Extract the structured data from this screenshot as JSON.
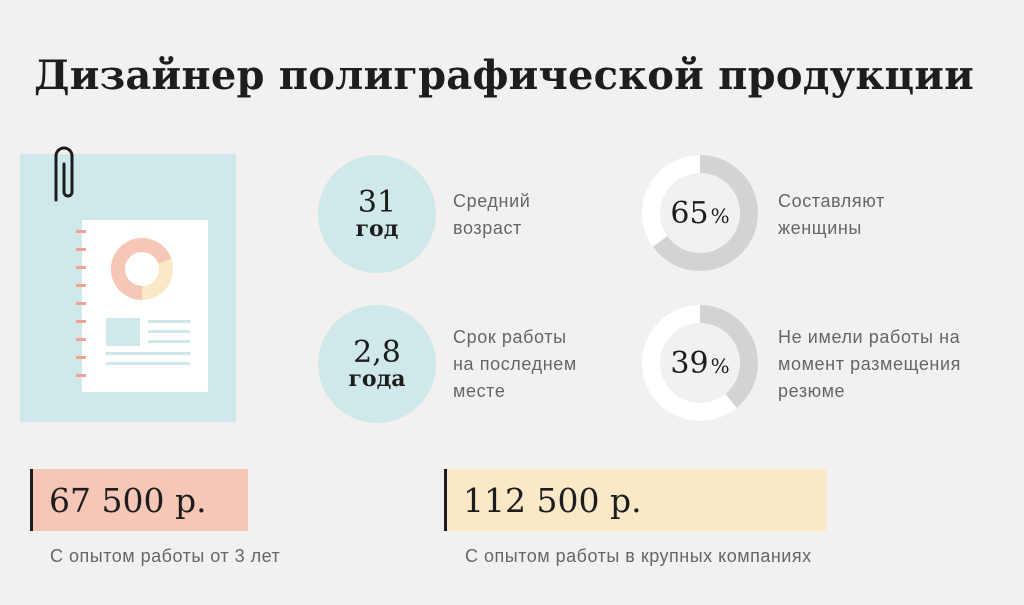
{
  "title": "Дизайнер полиграфической продукции",
  "stats": [
    {
      "number": "31",
      "unit": "год",
      "label_lines": [
        "Средний",
        "возраст"
      ]
    },
    {
      "number": "2,8",
      "unit": "года",
      "label_lines": [
        "Срок работы",
        "на последнем",
        "месте"
      ]
    }
  ],
  "percent_stats": [
    {
      "value": 65,
      "display": "65",
      "percent_sign": "%",
      "label_lines": [
        "Составляют",
        "женщины"
      ]
    },
    {
      "value": 39,
      "display": "39",
      "percent_sign": "%",
      "label_lines": [
        "Не имели работы на",
        "момент размещения",
        "резюме"
      ]
    }
  ],
  "salaries": [
    {
      "amount": "67 500 р.",
      "caption": "С опытом работы от 3 лет",
      "color": "#f6c6b6"
    },
    {
      "amount": "112 500 р.",
      "caption": "С опытом работы в крупных компаниях",
      "color": "#fbe8c6"
    }
  ],
  "colors": {
    "bubble": "#cfe8ea",
    "donut_fill": "#d3d3d3",
    "donut_track": "#ffffff",
    "illus_bg": "#cfe8ea",
    "illus_pie_a": "#f6c6b6",
    "illus_pie_b": "#fbe8c6",
    "accent_ticks": "#f4a393"
  },
  "icons": {
    "paperclip": "paperclip-icon",
    "document": "document-icon"
  }
}
